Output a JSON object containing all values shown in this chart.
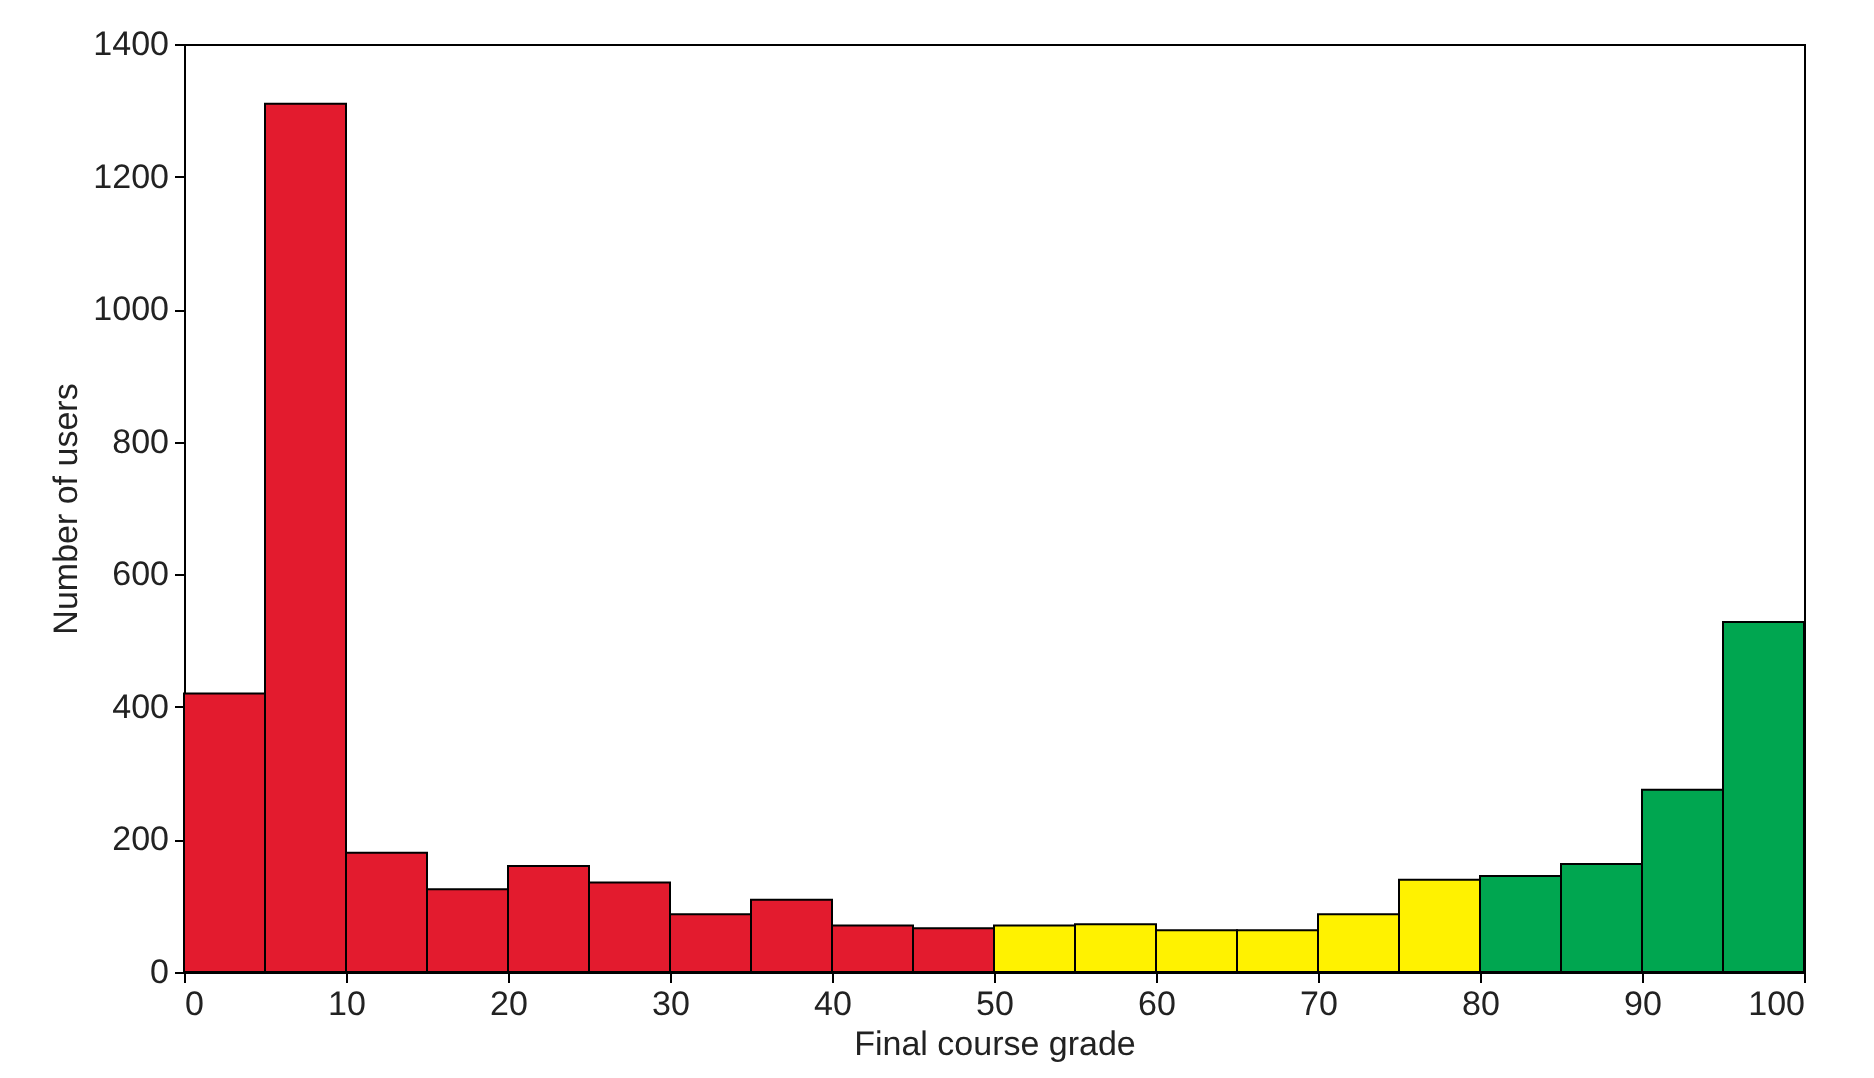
{
  "chart_data": {
    "type": "histogram",
    "xlabel": "Final course grade",
    "ylabel": "Number of users",
    "bins": [
      0,
      5,
      10,
      15,
      20,
      25,
      30,
      35,
      40,
      45,
      50,
      55,
      60,
      65,
      70,
      75,
      80,
      85,
      90,
      95,
      100
    ],
    "values": [
      420,
      1310,
      180,
      125,
      160,
      135,
      87,
      109,
      70,
      66,
      70,
      72,
      63,
      63,
      87,
      139,
      145,
      163,
      275,
      528
    ],
    "colors": [
      "#e31b2e",
      "#e31b2e",
      "#e31b2e",
      "#e31b2e",
      "#e31b2e",
      "#e31b2e",
      "#e31b2e",
      "#e31b2e",
      "#e31b2e",
      "#e31b2e",
      "#fff200",
      "#fff200",
      "#fff200",
      "#fff200",
      "#fff200",
      "#fff200",
      "#00a650",
      "#00a650",
      "#00a650",
      "#00a650"
    ],
    "xlim": [
      0,
      100
    ],
    "xticks": [
      0,
      10,
      20,
      30,
      40,
      50,
      60,
      70,
      80,
      90,
      100
    ],
    "ylim": [
      0,
      1400
    ],
    "yticks": [
      0,
      200,
      400,
      600,
      800,
      1000,
      1200,
      1400
    ],
    "grid": false
  }
}
